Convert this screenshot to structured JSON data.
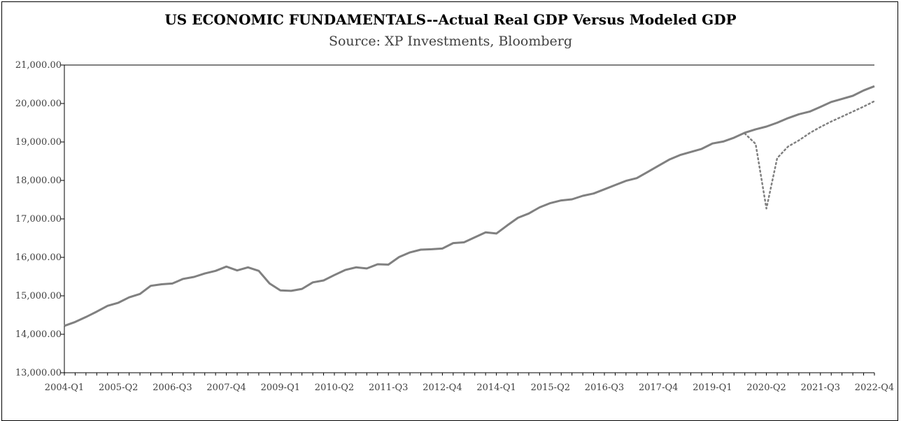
{
  "chart_data": {
    "type": "line",
    "title": "US ECONOMIC FUNDAMENTALS--Actual Real GDP Versus Modeled GDP",
    "subtitle": "Source: XP Investments, Bloomberg",
    "ylim": [
      13000,
      21000
    ],
    "yticks": [
      "21,000.00",
      "20,000.00",
      "19,000.00",
      "18,000.00",
      "17,000.00",
      "16,000.00",
      "15,000.00",
      "14,000.00",
      "13,000.00"
    ],
    "ytick_values": [
      21000,
      20000,
      19000,
      18000,
      17000,
      16000,
      15000,
      14000,
      13000
    ],
    "x_categories": [
      "2004-Q1",
      "2004-Q2",
      "2004-Q3",
      "2004-Q4",
      "2005-Q1",
      "2005-Q2",
      "2005-Q3",
      "2005-Q4",
      "2006-Q1",
      "2006-Q2",
      "2006-Q3",
      "2006-Q4",
      "2007-Q1",
      "2007-Q2",
      "2007-Q3",
      "2007-Q4",
      "2008-Q1",
      "2008-Q2",
      "2008-Q3",
      "2008-Q4",
      "2009-Q1",
      "2009-Q2",
      "2009-Q3",
      "2009-Q4",
      "2010-Q1",
      "2010-Q2",
      "2010-Q3",
      "2010-Q4",
      "2011-Q1",
      "2011-Q2",
      "2011-Q3",
      "2011-Q4",
      "2012-Q1",
      "2012-Q2",
      "2012-Q3",
      "2012-Q4",
      "2013-Q1",
      "2013-Q2",
      "2013-Q3",
      "2013-Q4",
      "2014-Q1",
      "2014-Q2",
      "2014-Q3",
      "2014-Q4",
      "2015-Q1",
      "2015-Q2",
      "2015-Q3",
      "2015-Q4",
      "2016-Q1",
      "2016-Q2",
      "2016-Q3",
      "2016-Q4",
      "2017-Q1",
      "2017-Q2",
      "2017-Q3",
      "2017-Q4",
      "2018-Q1",
      "2018-Q2",
      "2018-Q3",
      "2018-Q4",
      "2019-Q1",
      "2019-Q2",
      "2019-Q3",
      "2019-Q4",
      "2020-Q1",
      "2020-Q2",
      "2020-Q3",
      "2020-Q4",
      "2021-Q1",
      "2021-Q2",
      "2021-Q3",
      "2021-Q4",
      "2022-Q1",
      "2022-Q2",
      "2022-Q3",
      "2022-Q4"
    ],
    "xtick_labels": [
      "2004-Q1",
      "2005-Q2",
      "2006-Q3",
      "2007-Q4",
      "2009-Q1",
      "2010-Q2",
      "2011-Q3",
      "2012-Q4",
      "2014-Q1",
      "2015-Q2",
      "2016-Q3",
      "2017-Q4",
      "2019-Q1",
      "2020-Q2",
      "2021-Q3",
      "2022-Q4"
    ],
    "xtick_every": 5,
    "series": [
      {
        "style": "solid",
        "color": "#808080",
        "values": [
          14220,
          14320,
          14450,
          14590,
          14740,
          14820,
          14960,
          15050,
          15260,
          15300,
          15320,
          15440,
          15490,
          15580,
          15650,
          15760,
          15660,
          15740,
          15650,
          15320,
          15140,
          15130,
          15180,
          15350,
          15400,
          15540,
          15670,
          15740,
          15710,
          15820,
          15810,
          16010,
          16130,
          16200,
          16210,
          16230,
          16370,
          16390,
          16520,
          16650,
          16620,
          16830,
          17030,
          17140,
          17300,
          17410,
          17480,
          17510,
          17600,
          17660,
          17770,
          17880,
          17990,
          18060,
          18220,
          18380,
          18540,
          18660,
          18740,
          18820,
          18960,
          19010,
          19110,
          19240,
          19330,
          19400,
          19500,
          19620,
          19720,
          19790,
          19910,
          20040,
          20120,
          20200,
          20340,
          20450
        ]
      },
      {
        "style": "dotted",
        "color": "#808080",
        "start_index": 63,
        "values": [
          19220,
          18950,
          17270,
          18580,
          18880,
          19040,
          19230,
          19390,
          19530,
          19660,
          19790,
          19920,
          20060
        ]
      }
    ]
  }
}
